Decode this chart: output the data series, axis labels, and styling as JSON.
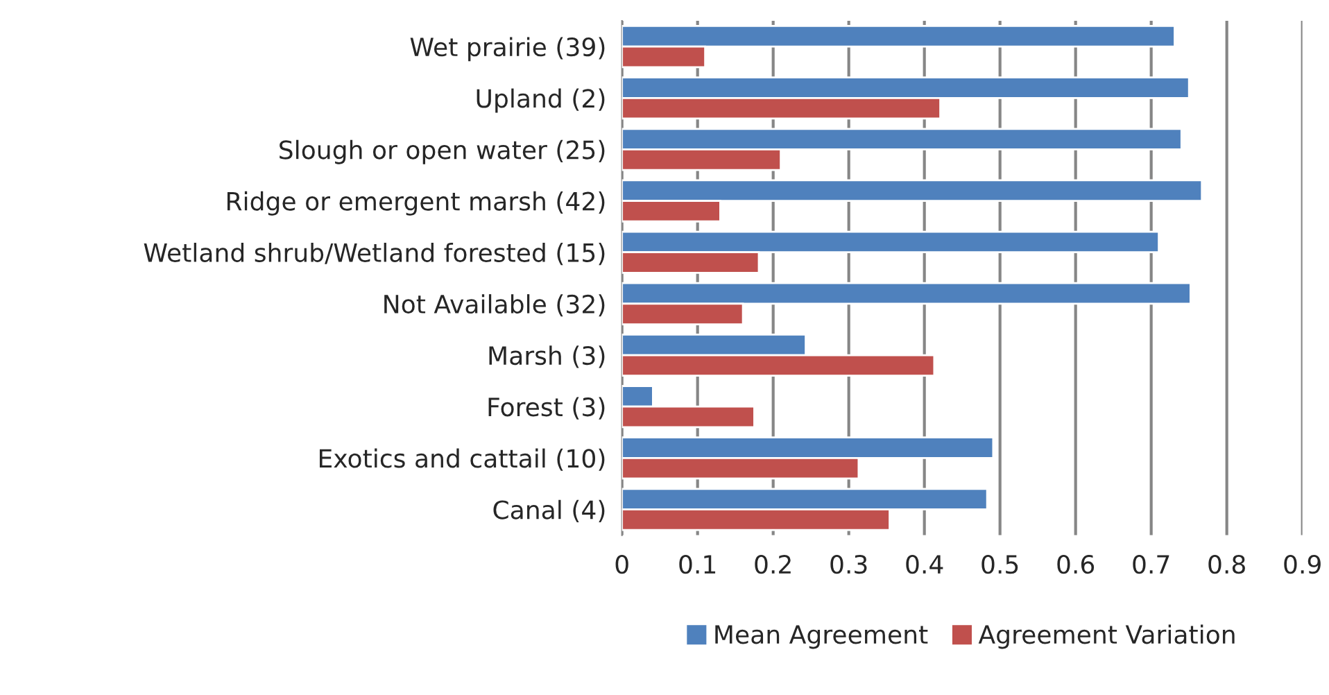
{
  "chart_data": {
    "type": "bar",
    "orientation": "horizontal",
    "categories": [
      "Wet prairie (39)",
      "Upland (2)",
      "Slough or open water (25)",
      "Ridge or emergent marsh (42)",
      "Wetland shrub/Wetland forested (15)",
      "Not Available (32)",
      "Marsh (3)",
      "Forest (3)",
      "Exotics and cattail (10)",
      "Canal (4)"
    ],
    "series": [
      {
        "name": "Mean Agreement",
        "color": "#4f81bd",
        "values": [
          0.731,
          0.75,
          0.74,
          0.767,
          0.71,
          0.752,
          0.243,
          0.041,
          0.491,
          0.483
        ]
      },
      {
        "name": "Agreement Variation",
        "color": "#c0504d",
        "values": [
          0.11,
          0.421,
          0.21,
          0.13,
          0.181,
          0.16,
          0.413,
          0.175,
          0.313,
          0.354
        ]
      }
    ],
    "xlim": [
      0,
      0.9
    ],
    "xticks": [
      0,
      0.1,
      0.2,
      0.3,
      0.4,
      0.5,
      0.6,
      0.7,
      0.8,
      0.9
    ],
    "grid": "x",
    "legend": "bottom"
  }
}
